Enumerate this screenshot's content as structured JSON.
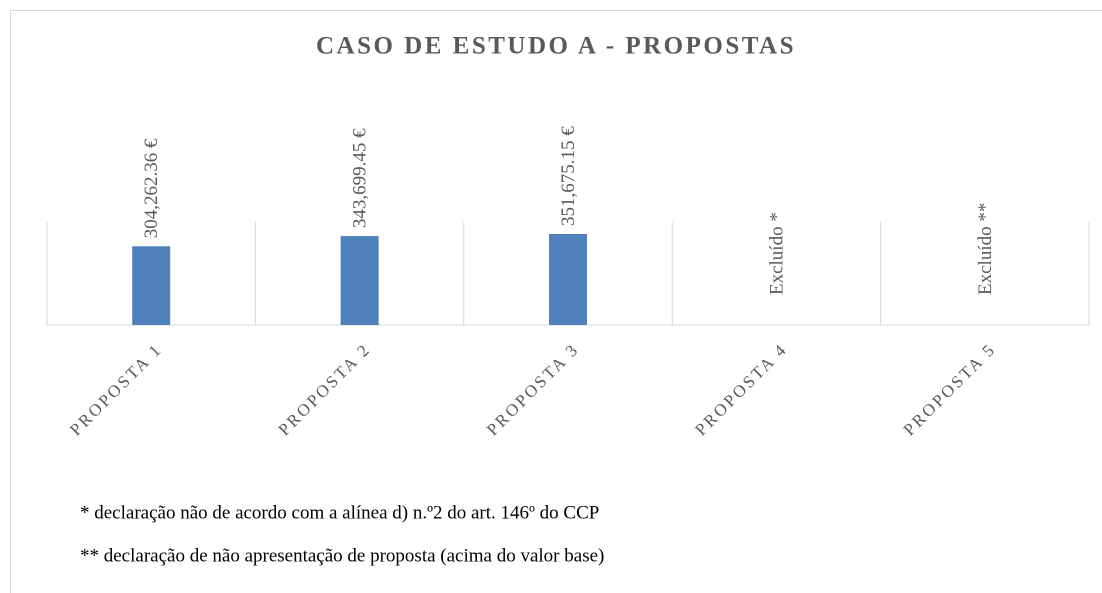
{
  "chart_data": {
    "type": "bar",
    "title": "CASO DE ESTUDO A - PROPOSTAS",
    "categories": [
      "PROPOSTA 1",
      "PROPOSTA 2",
      "PROPOSTA 3",
      "PROPOSTA 4",
      "PROPOSTA 5"
    ],
    "values": [
      304262.36,
      343699.45,
      351675.15,
      null,
      null
    ],
    "value_labels": [
      "304,262.36 €",
      "343,699.45 €",
      "351,675.15 €",
      "Excluído *",
      "Excluído **"
    ],
    "color": "#4f81bd",
    "ylim": [
      0,
      400000
    ],
    "grid": true,
    "footnotes": [
      "* declaração não de acordo com a alínea d) n.º2 do art. 146º do CCP",
      "** declaração de não apresentação de proposta (acima do valor base)"
    ]
  }
}
